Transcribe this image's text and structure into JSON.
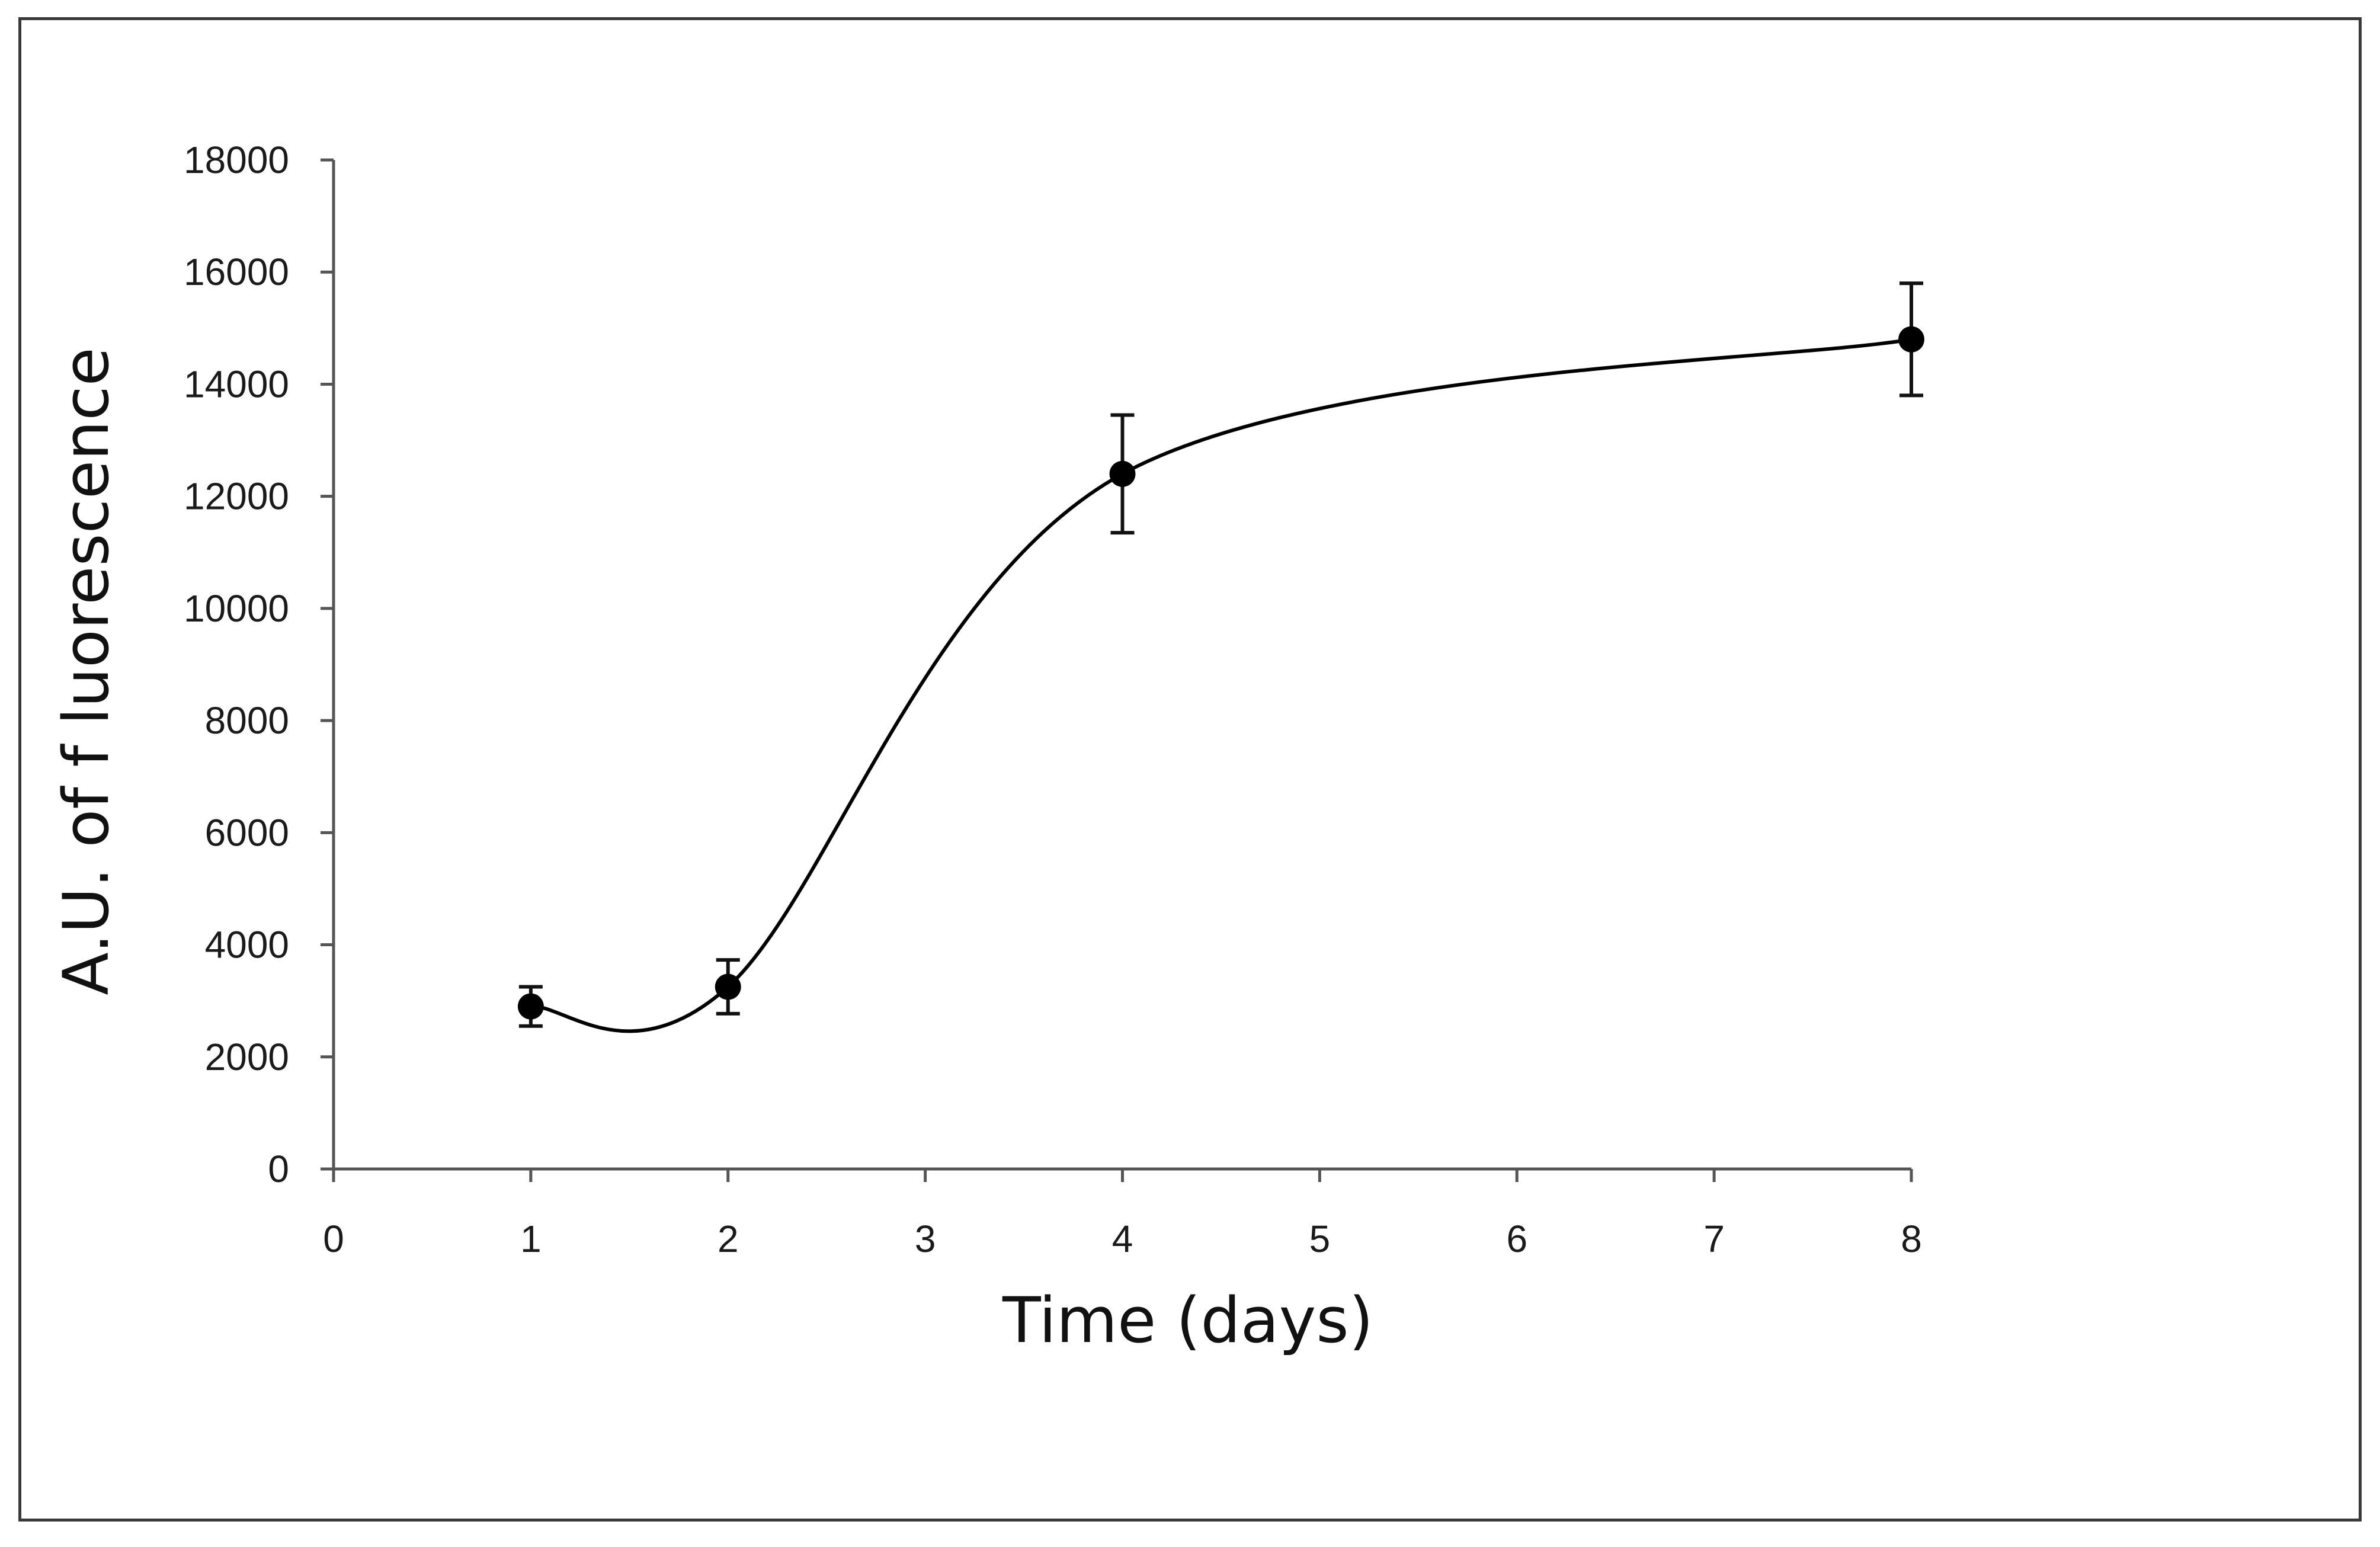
{
  "chart_data": {
    "type": "line",
    "title": "",
    "xlabel": "Time (days)",
    "ylabel": "A.U. of f luorescence",
    "xlim": [
      0,
      8
    ],
    "ylim": [
      0,
      18000
    ],
    "x_ticks": [
      0,
      1,
      2,
      3,
      4,
      5,
      6,
      7,
      8
    ],
    "y_ticks": [
      0,
      2000,
      4000,
      6000,
      8000,
      10000,
      12000,
      14000,
      16000,
      18000
    ],
    "grid": false,
    "smooth": true,
    "series": [
      {
        "name": "fluorescence",
        "x": [
          1,
          2,
          4,
          8
        ],
        "y": [
          2900,
          3250,
          12400,
          14800
        ],
        "error": [
          350,
          480,
          1050,
          1000
        ],
        "color": "#000000"
      }
    ]
  }
}
